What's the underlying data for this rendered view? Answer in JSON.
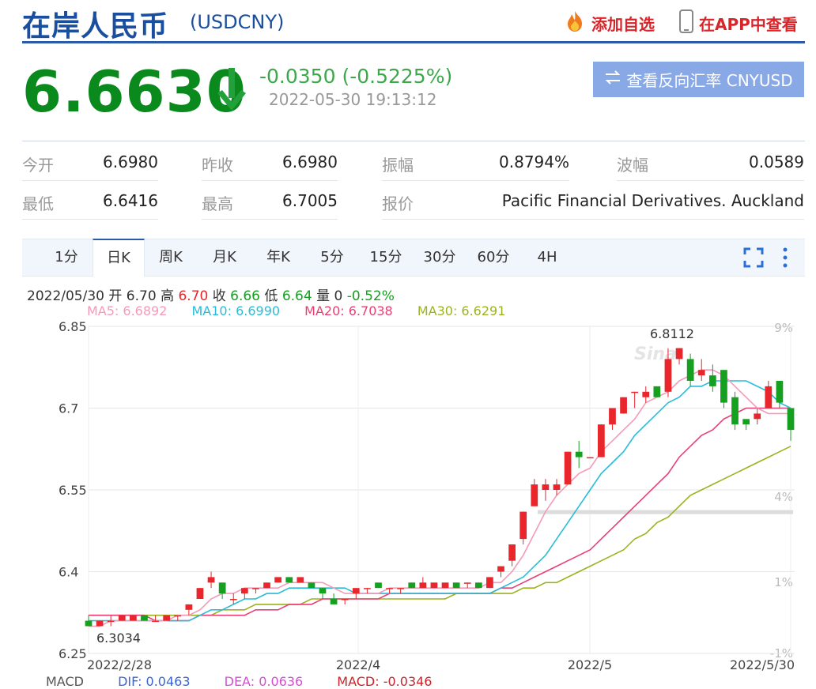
{
  "header": {
    "title": "在岸人民币",
    "code": "(USDCNY)",
    "add_favorite": "添加自选",
    "view_in_app": "在APP中查看"
  },
  "quote": {
    "price": "6.6630",
    "change": "-0.0350 (-0.5225%)",
    "timestamp": "2022-05-30 19:13:12",
    "reverse_button": "查看反向汇率 CNYUSD"
  },
  "stats": [
    {
      "label": "今开",
      "value": "6.6980"
    },
    {
      "label": "昨收",
      "value": "6.6980"
    },
    {
      "label": "振幅",
      "value": "0.8794%"
    },
    {
      "label": "波幅",
      "value": "0.0589"
    },
    {
      "label": "最低",
      "value": "6.6416"
    },
    {
      "label": "最高",
      "value": "6.7005"
    },
    {
      "label": "报价",
      "value": "Pacific Financial Derivatives. Auckland"
    }
  ],
  "tabs": [
    "1分",
    "日K",
    "周K",
    "月K",
    "年K",
    "5分",
    "15分",
    "30分",
    "60分",
    "4H"
  ],
  "active_tab": "日K",
  "ohlc": {
    "date": "2022/05/30",
    "open_label": "开",
    "open": "6.70",
    "high_label": "高",
    "high": "6.70",
    "close_label": "收",
    "close": "6.66",
    "low_label": "低",
    "low": "6.64",
    "vol_label": "量",
    "vol": "0",
    "pct": "-0.52%"
  },
  "ma": {
    "ma5": "MA5: 6.6892",
    "ma10": "MA10: 6.6990",
    "ma20": "MA20: 6.7038",
    "ma30": "MA30: 6.6291"
  },
  "macd": {
    "label": "MACD",
    "dif": "DIF: 0.0463",
    "dea": "DEA: 0.0636",
    "macd": "MACD: -0.0346"
  },
  "colors": {
    "up": "#e8262b",
    "down": "#15a020",
    "ma5": "#f59ab9",
    "ma10": "#29bcd8",
    "ma20": "#e84074",
    "ma30": "#9cb21e"
  },
  "chart_data": {
    "type": "candlestick",
    "y_ticks": [
      "6.85",
      "6.7",
      "6.55",
      "6.4",
      "6.25"
    ],
    "pct_ticks": [
      "9%",
      "4%",
      "1%",
      "-1%"
    ],
    "x_ticks": [
      "2022/2/28",
      "2022/4",
      "2022/5",
      "2022/5/30"
    ],
    "ylim": [
      6.25,
      6.85
    ],
    "max_label": "6.8112",
    "min_label": "6.3034",
    "candles": [
      {
        "o": 6.31,
        "c": 6.3,
        "h": 6.32,
        "l": 6.3
      },
      {
        "o": 6.3,
        "c": 6.31,
        "h": 6.31,
        "l": 6.3
      },
      {
        "o": 6.31,
        "c": 6.31,
        "h": 6.32,
        "l": 6.3
      },
      {
        "o": 6.31,
        "c": 6.32,
        "h": 6.32,
        "l": 6.31
      },
      {
        "o": 6.31,
        "c": 6.32,
        "h": 6.32,
        "l": 6.31
      },
      {
        "o": 6.32,
        "c": 6.31,
        "h": 6.32,
        "l": 6.31
      },
      {
        "o": 6.31,
        "c": 6.31,
        "h": 6.32,
        "l": 6.31
      },
      {
        "o": 6.31,
        "c": 6.32,
        "h": 6.32,
        "l": 6.31
      },
      {
        "o": 6.32,
        "c": 6.32,
        "h": 6.32,
        "l": 6.31
      },
      {
        "o": 6.33,
        "c": 6.34,
        "h": 6.34,
        "l": 6.32
      },
      {
        "o": 6.35,
        "c": 6.37,
        "h": 6.37,
        "l": 6.35
      },
      {
        "o": 6.38,
        "c": 6.39,
        "h": 6.4,
        "l": 6.37
      },
      {
        "o": 6.38,
        "c": 6.36,
        "h": 6.38,
        "l": 6.35
      },
      {
        "o": 6.35,
        "c": 6.35,
        "h": 6.36,
        "l": 6.34
      },
      {
        "o": 6.36,
        "c": 6.37,
        "h": 6.37,
        "l": 6.35
      },
      {
        "o": 6.37,
        "c": 6.37,
        "h": 6.37,
        "l": 6.36
      },
      {
        "o": 6.37,
        "c": 6.38,
        "h": 6.38,
        "l": 6.37
      },
      {
        "o": 6.38,
        "c": 6.39,
        "h": 6.39,
        "l": 6.38
      },
      {
        "o": 6.39,
        "c": 6.38,
        "h": 6.39,
        "l": 6.38
      },
      {
        "o": 6.38,
        "c": 6.39,
        "h": 6.39,
        "l": 6.38
      },
      {
        "o": 6.38,
        "c": 6.37,
        "h": 6.38,
        "l": 6.37
      },
      {
        "o": 6.37,
        "c": 6.36,
        "h": 6.37,
        "l": 6.35
      },
      {
        "o": 6.35,
        "c": 6.34,
        "h": 6.36,
        "l": 6.34
      },
      {
        "o": 6.35,
        "c": 6.35,
        "h": 6.35,
        "l": 6.34
      },
      {
        "o": 6.36,
        "c": 6.37,
        "h": 6.37,
        "l": 6.35
      },
      {
        "o": 6.37,
        "c": 6.37,
        "h": 6.37,
        "l": 6.36
      },
      {
        "o": 6.38,
        "c": 6.37,
        "h": 6.38,
        "l": 6.37
      },
      {
        "o": 6.37,
        "c": 6.37,
        "h": 6.37,
        "l": 6.36
      },
      {
        "o": 6.37,
        "c": 6.37,
        "h": 6.37,
        "l": 6.36
      },
      {
        "o": 6.38,
        "c": 6.37,
        "h": 6.38,
        "l": 6.37
      },
      {
        "o": 6.37,
        "c": 6.38,
        "h": 6.39,
        "l": 6.37
      },
      {
        "o": 6.37,
        "c": 6.38,
        "h": 6.38,
        "l": 6.37
      },
      {
        "o": 6.37,
        "c": 6.38,
        "h": 6.38,
        "l": 6.37
      },
      {
        "o": 6.38,
        "c": 6.37,
        "h": 6.38,
        "l": 6.37
      },
      {
        "o": 6.38,
        "c": 6.38,
        "h": 6.38,
        "l": 6.37
      },
      {
        "o": 6.38,
        "c": 6.37,
        "h": 6.38,
        "l": 6.37
      },
      {
        "o": 6.37,
        "c": 6.39,
        "h": 6.39,
        "l": 6.37
      },
      {
        "o": 6.4,
        "c": 6.41,
        "h": 6.41,
        "l": 6.39
      },
      {
        "o": 6.42,
        "c": 6.45,
        "h": 6.45,
        "l": 6.41
      },
      {
        "o": 6.46,
        "c": 6.51,
        "h": 6.51,
        "l": 6.45
      },
      {
        "o": 6.52,
        "c": 6.56,
        "h": 6.57,
        "l": 6.52
      },
      {
        "o": 6.55,
        "c": 6.56,
        "h": 6.57,
        "l": 6.53
      },
      {
        "o": 6.55,
        "c": 6.56,
        "h": 6.57,
        "l": 6.54
      },
      {
        "o": 6.56,
        "c": 6.62,
        "h": 6.62,
        "l": 6.56
      },
      {
        "o": 6.62,
        "c": 6.61,
        "h": 6.64,
        "l": 6.59
      },
      {
        "o": 6.61,
        "c": 6.61,
        "h": 6.61,
        "l": 6.61
      },
      {
        "o": 6.61,
        "c": 6.67,
        "h": 6.67,
        "l": 6.61
      },
      {
        "o": 6.67,
        "c": 6.7,
        "h": 6.7,
        "l": 6.66
      },
      {
        "o": 6.69,
        "c": 6.72,
        "h": 6.72,
        "l": 6.69
      },
      {
        "o": 6.73,
        "c": 6.73,
        "h": 6.73,
        "l": 6.7
      },
      {
        "o": 6.72,
        "c": 6.73,
        "h": 6.74,
        "l": 6.71
      },
      {
        "o": 6.74,
        "c": 6.72,
        "h": 6.74,
        "l": 6.72
      },
      {
        "o": 6.73,
        "c": 6.79,
        "h": 6.81,
        "l": 6.72
      },
      {
        "o": 6.79,
        "c": 6.81,
        "h": 6.81,
        "l": 6.78
      },
      {
        "o": 6.79,
        "c": 6.75,
        "h": 6.8,
        "l": 6.74
      },
      {
        "o": 6.76,
        "c": 6.77,
        "h": 6.79,
        "l": 6.75
      },
      {
        "o": 6.76,
        "c": 6.74,
        "h": 6.78,
        "l": 6.73
      },
      {
        "o": 6.77,
        "c": 6.71,
        "h": 6.77,
        "l": 6.7
      },
      {
        "o": 6.72,
        "c": 6.67,
        "h": 6.73,
        "l": 6.66
      },
      {
        "o": 6.68,
        "c": 6.67,
        "h": 6.68,
        "l": 6.66
      },
      {
        "o": 6.68,
        "c": 6.69,
        "h": 6.7,
        "l": 6.67
      },
      {
        "o": 6.7,
        "c": 6.74,
        "h": 6.75,
        "l": 6.7
      },
      {
        "o": 6.75,
        "c": 6.71,
        "h": 6.75,
        "l": 6.7
      },
      {
        "o": 6.7,
        "c": 6.66,
        "h": 6.7,
        "l": 6.64
      }
    ],
    "ma5": [
      6.3,
      6.3,
      6.31,
      6.31,
      6.31,
      6.31,
      6.31,
      6.31,
      6.32,
      6.32,
      6.33,
      6.35,
      6.36,
      6.36,
      6.37,
      6.37,
      6.37,
      6.37,
      6.38,
      6.38,
      6.38,
      6.38,
      6.37,
      6.36,
      6.36,
      6.36,
      6.36,
      6.37,
      6.37,
      6.37,
      6.37,
      6.37,
      6.37,
      6.37,
      6.37,
      6.37,
      6.38,
      6.38,
      6.4,
      6.43,
      6.47,
      6.51,
      6.54,
      6.56,
      6.58,
      6.59,
      6.62,
      6.64,
      6.66,
      6.68,
      6.71,
      6.72,
      6.73,
      6.75,
      6.76,
      6.77,
      6.77,
      6.76,
      6.74,
      6.72,
      6.7,
      6.69,
      6.69,
      6.69
    ],
    "ma10": [
      6.31,
      6.31,
      6.31,
      6.31,
      6.31,
      6.31,
      6.31,
      6.31,
      6.31,
      6.31,
      6.32,
      6.33,
      6.33,
      6.34,
      6.35,
      6.35,
      6.36,
      6.36,
      6.37,
      6.37,
      6.37,
      6.37,
      6.37,
      6.37,
      6.36,
      6.36,
      6.36,
      6.36,
      6.36,
      6.36,
      6.36,
      6.36,
      6.36,
      6.36,
      6.36,
      6.36,
      6.36,
      6.37,
      6.38,
      6.39,
      6.41,
      6.43,
      6.46,
      6.49,
      6.52,
      6.55,
      6.58,
      6.6,
      6.62,
      6.65,
      6.67,
      6.69,
      6.71,
      6.72,
      6.74,
      6.74,
      6.75,
      6.75,
      6.75,
      6.75,
      6.74,
      6.73,
      6.71,
      6.7
    ],
    "ma20": [
      6.32,
      6.32,
      6.32,
      6.32,
      6.32,
      6.32,
      6.31,
      6.31,
      6.31,
      6.31,
      6.32,
      6.32,
      6.32,
      6.32,
      6.32,
      6.33,
      6.33,
      6.33,
      6.34,
      6.34,
      6.34,
      6.35,
      6.35,
      6.35,
      6.35,
      6.35,
      6.35,
      6.36,
      6.36,
      6.36,
      6.36,
      6.36,
      6.36,
      6.36,
      6.36,
      6.36,
      6.36,
      6.37,
      6.37,
      6.38,
      6.39,
      6.4,
      6.41,
      6.42,
      6.43,
      6.44,
      6.46,
      6.48,
      6.5,
      6.52,
      6.54,
      6.56,
      6.58,
      6.61,
      6.63,
      6.65,
      6.66,
      6.68,
      6.69,
      6.7,
      6.7,
      6.7,
      6.7,
      6.7
    ],
    "ma30": [
      6.32,
      6.32,
      6.32,
      6.32,
      6.32,
      6.32,
      6.32,
      6.32,
      6.32,
      6.32,
      6.32,
      6.32,
      6.33,
      6.33,
      6.33,
      6.34,
      6.34,
      6.34,
      6.34,
      6.34,
      6.35,
      6.35,
      6.35,
      6.35,
      6.35,
      6.35,
      6.35,
      6.35,
      6.35,
      6.35,
      6.35,
      6.35,
      6.35,
      6.36,
      6.36,
      6.36,
      6.36,
      6.36,
      6.36,
      6.37,
      6.37,
      6.38,
      6.38,
      6.39,
      6.4,
      6.41,
      6.42,
      6.43,
      6.44,
      6.46,
      6.47,
      6.49,
      6.5,
      6.52,
      6.54,
      6.55,
      6.56,
      6.57,
      6.58,
      6.59,
      6.6,
      6.61,
      6.62,
      6.63
    ]
  }
}
